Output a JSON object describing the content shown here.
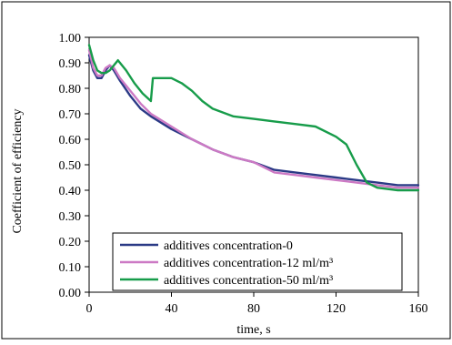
{
  "chart_data": {
    "type": "line",
    "title": "",
    "xlabel": "time, s",
    "ylabel": "Coefficient of efficiency",
    "xlim": [
      0,
      160
    ],
    "ylim": [
      0,
      1
    ],
    "x_ticks": [
      0,
      40,
      80,
      120,
      160
    ],
    "x_tick_labels": [
      "0",
      "40",
      "80",
      "120",
      "160"
    ],
    "y_ticks": [
      0,
      0.1,
      0.2,
      0.3,
      0.4,
      0.5,
      0.6,
      0.7,
      0.8,
      0.9,
      1.0
    ],
    "y_tick_labels": [
      "0.00",
      "0.10",
      "0.20",
      "0.30",
      "0.40",
      "0.50",
      "0.60",
      "0.70",
      "0.80",
      "0.90",
      "1.00"
    ],
    "grid": false,
    "legend_position": "bottom-center",
    "series": [
      {
        "name": "additives concentration-0",
        "color": "#2b3a86",
        "x": [
          0,
          2,
          4,
          6,
          8,
          10,
          12,
          15,
          20,
          25,
          30,
          40,
          50,
          60,
          70,
          80,
          90,
          100,
          110,
          120,
          130,
          140,
          150,
          160
        ],
        "y": [
          0.93,
          0.87,
          0.84,
          0.84,
          0.87,
          0.89,
          0.87,
          0.83,
          0.77,
          0.72,
          0.69,
          0.64,
          0.6,
          0.56,
          0.53,
          0.51,
          0.48,
          0.47,
          0.46,
          0.45,
          0.44,
          0.43,
          0.42,
          0.42
        ]
      },
      {
        "name": "additives concentration-12 ml/m³",
        "color": "#cc79c4",
        "x": [
          0,
          2,
          4,
          6,
          8,
          10,
          12,
          15,
          20,
          25,
          30,
          40,
          50,
          60,
          70,
          80,
          90,
          100,
          110,
          120,
          130,
          140,
          150,
          160
        ],
        "y": [
          0.95,
          0.88,
          0.85,
          0.85,
          0.88,
          0.89,
          0.88,
          0.84,
          0.79,
          0.74,
          0.7,
          0.65,
          0.6,
          0.56,
          0.53,
          0.51,
          0.47,
          0.46,
          0.45,
          0.44,
          0.43,
          0.42,
          0.41,
          0.41
        ]
      },
      {
        "name": "additives concentration-50 ml/m³",
        "color": "#179c4a",
        "x": [
          0,
          2,
          4,
          6,
          8,
          10,
          12,
          14,
          18,
          22,
          26,
          30,
          31,
          35,
          40,
          45,
          50,
          55,
          60,
          70,
          80,
          90,
          100,
          110,
          120,
          125,
          130,
          135,
          140,
          150,
          160
        ],
        "y": [
          0.97,
          0.91,
          0.87,
          0.86,
          0.86,
          0.87,
          0.89,
          0.91,
          0.87,
          0.82,
          0.78,
          0.75,
          0.84,
          0.84,
          0.84,
          0.82,
          0.79,
          0.75,
          0.72,
          0.69,
          0.68,
          0.67,
          0.66,
          0.65,
          0.61,
          0.58,
          0.5,
          0.43,
          0.41,
          0.4,
          0.4
        ]
      }
    ]
  }
}
